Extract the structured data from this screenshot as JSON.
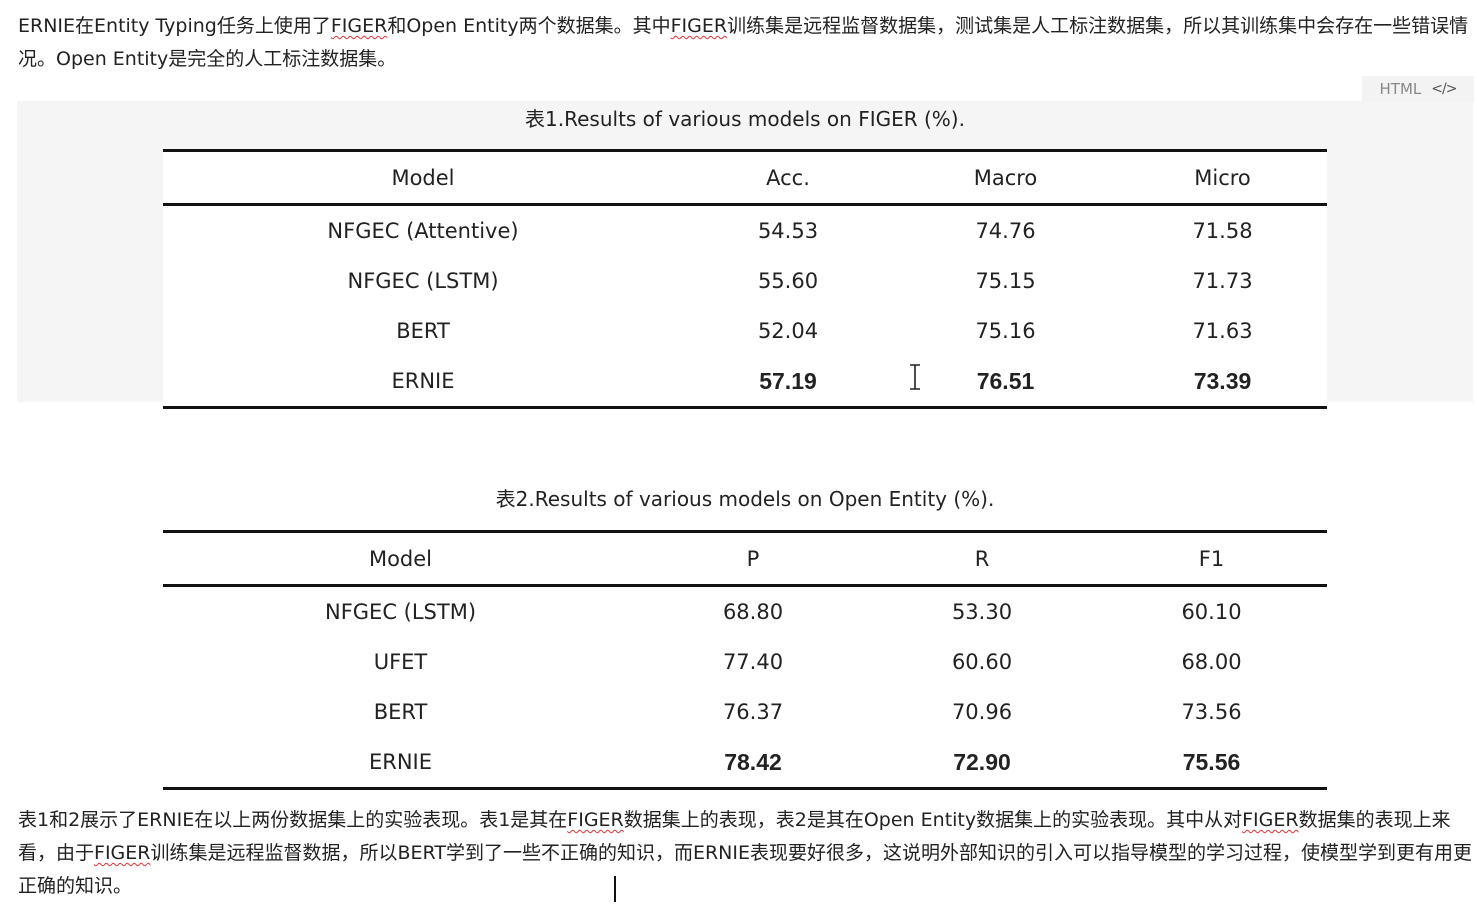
{
  "para_top": {
    "p1": "ERNIE在Entity Typing任务上使用了",
    "w1": "FIGER",
    "p2": "和Open Entity两个数据集。其中",
    "w2": "FIGER",
    "p3": "训练集是远程监督数据集，测试集是人工标注数据集，所以其训练集中会存在一些错误情况。Open Entity是完全的人工标注数据集。"
  },
  "code_badge": {
    "label": "HTML",
    "icon": "code-icon"
  },
  "table1": {
    "caption": "表1.Results of various models on FIGER (%).",
    "headers": [
      "Model",
      "Acc.",
      "Macro",
      "Micro"
    ],
    "rows": [
      [
        "NFGEC (Attentive)",
        "54.53",
        "74.76",
        "71.58"
      ],
      [
        "NFGEC (LSTM)",
        "55.60",
        "75.15",
        "71.73"
      ],
      [
        "BERT",
        "52.04",
        "75.16",
        "71.63"
      ],
      [
        "ERNIE",
        "57.19",
        "76.51",
        "73.39"
      ]
    ]
  },
  "table2": {
    "caption": "表2.Results of various models on Open Entity (%).",
    "headers": [
      "Model",
      "P",
      "R",
      "F1"
    ],
    "rows": [
      [
        "NFGEC (LSTM)",
        "68.80",
        "53.30",
        "60.10"
      ],
      [
        "UFET",
        "77.40",
        "60.60",
        "68.00"
      ],
      [
        "BERT",
        "76.37",
        "70.96",
        "73.56"
      ],
      [
        "ERNIE",
        "78.42",
        "72.90",
        "75.56"
      ]
    ]
  },
  "para_bottom": {
    "p1": "表1和2展示了ERNIE在以上两份数据集上的实验表现。表1是其在",
    "w1": "FIGER",
    "p2": "数据集上的表现，表2是其在Open Entity数据集上的实验表现。其中从对",
    "w2": "FIGER",
    "p3": "数据集的表现上来看，由于",
    "w3": "FIGER",
    "p4": "训练集是远程监督数据，所以BERT学到了一些不正确的知识，而ERNIE表现要好很多，这说明外部知识的引入可以指导模型的学习过程，使模型学到更有用更正确的知识。"
  }
}
